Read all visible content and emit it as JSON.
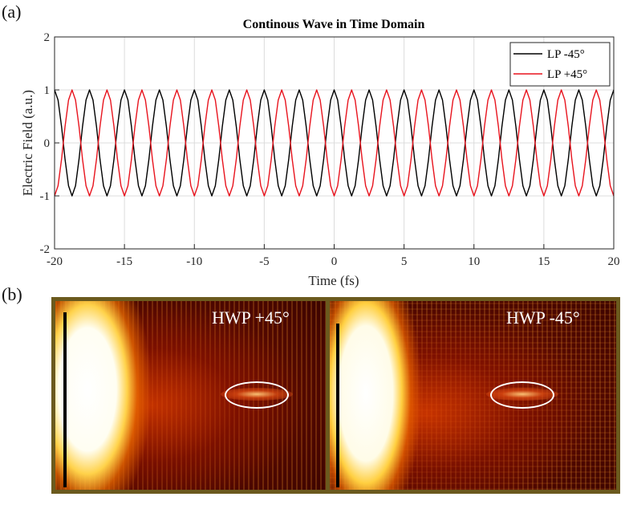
{
  "panels": {
    "a_label": "(a)",
    "b_label": "(b)"
  },
  "chart_data": {
    "type": "line",
    "title": "Continous Wave in Time Domain",
    "xlabel": "Time (fs)",
    "ylabel": "Electric Field (a.u.)",
    "xlim": [
      -20,
      20
    ],
    "ylim": [
      -2,
      2
    ],
    "xticks": [
      -20,
      -15,
      -10,
      -5,
      0,
      5,
      10,
      15,
      20
    ],
    "yticks": [
      -2,
      -1,
      0,
      1,
      2
    ],
    "grid": true,
    "legend_position": "top-right",
    "series": [
      {
        "name": "LP -45°",
        "color": "#000000",
        "function": "cos",
        "amplitude": 1,
        "period_fs": 2.5,
        "phase": "0",
        "sample_step_fs": 0.25
      },
      {
        "name": "LP +45°",
        "color": "#e8141e",
        "function": "cos",
        "amplitude": 1,
        "period_fs": 2.5,
        "phase": "pi",
        "sample_step_fs": 0.25
      }
    ]
  },
  "images": {
    "left": {
      "label": "HWP +45°"
    },
    "right": {
      "label": "HWP -45°"
    },
    "border_color": "#6b5a1e",
    "circle_color": "#ffffff"
  }
}
